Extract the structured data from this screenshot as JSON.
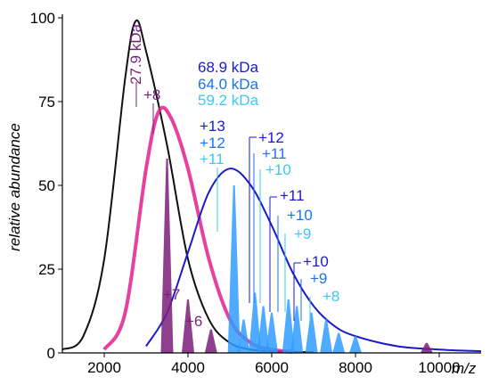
{
  "chart_data": {
    "type": "line",
    "title": "",
    "xlabel": "m/z",
    "ylabel": "relative abundance",
    "xlim": [
      1000,
      11000
    ],
    "ylim": [
      0,
      100
    ],
    "x_ticks": [
      2000,
      4000,
      6000,
      8000,
      10000
    ],
    "x_tick_labels": [
      "2000",
      "4000",
      "6000",
      "8000",
      "10000"
    ],
    "y_ticks": [
      0,
      25,
      50,
      75,
      100
    ],
    "y_tick_labels": [
      "0",
      "25",
      "50",
      "75",
      "100"
    ],
    "grid": false,
    "series": [
      {
        "color": "#111111",
        "x": [
          1000,
          1500,
          2000,
          2500,
          2750,
          3000,
          3500,
          4000,
          4500,
          5000,
          5500,
          6000,
          6500,
          7000
        ],
        "y": [
          1,
          5,
          28,
          82,
          99,
          90,
          62,
          28,
          10,
          3,
          1,
          0.5,
          0.3,
          0.2
        ]
      },
      {
        "color": "#e0208f",
        "x": [
          2000,
          2500,
          3000,
          3300,
          3600,
          4000,
          4500,
          5000,
          5500,
          6000,
          6500
        ],
        "y": [
          1,
          12,
          55,
          72,
          70,
          55,
          28,
          10,
          3,
          1,
          0.3
        ]
      },
      {
        "color": "#1a1acc",
        "x": [
          3000,
          3500,
          4000,
          4500,
          5000,
          5500,
          6000,
          6500,
          7000,
          7500,
          8000,
          9000,
          10000,
          11000
        ],
        "y": [
          2,
          12,
          30,
          48,
          55,
          50,
          38,
          24,
          14,
          8,
          5,
          2,
          1,
          0.5
        ]
      }
    ],
    "peaks": [
      {
        "x": 3500,
        "y": 58,
        "color": "#7a1f7a"
      },
      {
        "x": 4000,
        "y": 16,
        "color": "#7a1f7a"
      },
      {
        "x": 4550,
        "y": 7,
        "color": "#7a1f7a"
      },
      {
        "x": 5100,
        "y": 50,
        "color": "#2f9cff"
      },
      {
        "x": 5330,
        "y": 10,
        "color": "#2f9cff"
      },
      {
        "x": 5600,
        "y": 18,
        "color": "#2f9cff"
      },
      {
        "x": 5800,
        "y": 14,
        "color": "#2f9cff"
      },
      {
        "x": 6000,
        "y": 12,
        "color": "#2f9cff"
      },
      {
        "x": 6400,
        "y": 16,
        "color": "#2f9cff"
      },
      {
        "x": 6600,
        "y": 14,
        "color": "#2f9cff"
      },
      {
        "x": 6950,
        "y": 12,
        "color": "#2f9cff"
      },
      {
        "x": 7300,
        "y": 10,
        "color": "#2f9cff"
      },
      {
        "x": 7600,
        "y": 6,
        "color": "#2f9cff"
      },
      {
        "x": 8000,
        "y": 5,
        "color": "#2f9cff"
      },
      {
        "x": 9700,
        "y": 3,
        "color": "#7a1f7a"
      }
    ],
    "annotations": {
      "mass_27": {
        "text": "27.9 kDa",
        "color": "#7a1f7a"
      },
      "mass_68": {
        "text": "68.9 kDa",
        "color": "#1a1acc"
      },
      "mass_64": {
        "text": "64.0 kDa",
        "color": "#1a73e8"
      },
      "mass_59": {
        "text": "59.2 kDa",
        "color": "#3cc8f0"
      },
      "p_8": {
        "text": "+8",
        "color": "#7a1f7a"
      },
      "p_7": {
        "text": "+7",
        "color": "#7a1f7a"
      },
      "p_6": {
        "text": "+6",
        "color": "#7a1f7a"
      },
      "c13": {
        "text": "+13",
        "color": "#1a1acc"
      },
      "c12a": {
        "text": "+12",
        "color": "#1a73e8"
      },
      "c11a": {
        "text": "+11",
        "color": "#3cc8f0"
      },
      "c12b": {
        "text": "+12",
        "color": "#1a1acc"
      },
      "c11b": {
        "text": "+11",
        "color": "#1a73e8"
      },
      "c10a": {
        "text": "+10",
        "color": "#3cc8f0"
      },
      "c11c": {
        "text": "+11",
        "color": "#1a1acc"
      },
      "c10b": {
        "text": "+10",
        "color": "#1a73e8"
      },
      "c9a": {
        "text": "+9",
        "color": "#3cc8f0"
      },
      "c10c": {
        "text": "+10",
        "color": "#1a1acc"
      },
      "c9b": {
        "text": "+9",
        "color": "#1a73e8"
      },
      "c8": {
        "text": "+8",
        "color": "#3cc8f0"
      }
    }
  }
}
